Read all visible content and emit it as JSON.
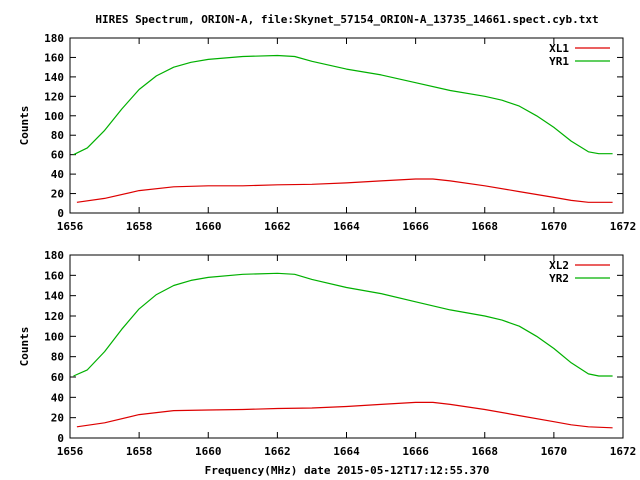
{
  "title": "HIRES Spectrum, ORION-A, file:Skynet_57154_ORION-A_13735_14661.spect.cyb.txt",
  "xlabel": "Frequency(MHz) date 2015-05-12T17:12:55.370",
  "colors": {
    "red": "#dd0000",
    "green": "#00b000",
    "axis": "#000000"
  },
  "chart_data": [
    {
      "type": "line",
      "ylabel": "Counts",
      "xlim": [
        1656,
        1672
      ],
      "ylim": [
        0,
        180
      ],
      "xticks": [
        "1656",
        "1658",
        "1660",
        "1662",
        "1664",
        "1666",
        "1668",
        "1670",
        "1672"
      ],
      "yticks": [
        "0",
        "20",
        "40",
        "60",
        "80",
        "100",
        "120",
        "140",
        "160",
        "180"
      ],
      "legend_position": "top-right",
      "series": [
        {
          "name": "XL1",
          "color": "#dd0000",
          "x": [
            1656.2,
            1657.0,
            1658.0,
            1659.0,
            1660.0,
            1661.0,
            1662.0,
            1663.0,
            1664.0,
            1665.0,
            1666.0,
            1666.5,
            1667.0,
            1668.0,
            1669.0,
            1670.0,
            1670.5,
            1671.0,
            1671.7
          ],
          "y": [
            11,
            15,
            23,
            27,
            28,
            28,
            29,
            29.5,
            31,
            33,
            35,
            35,
            33,
            28,
            22,
            16,
            13,
            11,
            11
          ]
        },
        {
          "name": "YR1",
          "color": "#00b000",
          "x": [
            1656.1,
            1656.5,
            1657.0,
            1657.5,
            1658.0,
            1658.5,
            1659.0,
            1659.5,
            1660.0,
            1661.0,
            1662.0,
            1662.5,
            1663.0,
            1664.0,
            1665.0,
            1666.0,
            1667.0,
            1668.0,
            1668.5,
            1669.0,
            1669.5,
            1670.0,
            1670.5,
            1671.0,
            1671.3,
            1671.7
          ],
          "y": [
            60,
            67,
            85,
            107,
            127,
            141,
            150,
            155,
            158,
            161,
            162,
            161,
            156,
            148,
            142,
            134,
            126,
            120,
            116,
            110,
            100,
            88,
            74,
            63,
            61,
            61
          ]
        }
      ]
    },
    {
      "type": "line",
      "ylabel": "Counts",
      "xlim": [
        1656,
        1672
      ],
      "ylim": [
        0,
        180
      ],
      "xticks": [
        "1656",
        "1658",
        "1660",
        "1662",
        "1664",
        "1666",
        "1668",
        "1670",
        "1672"
      ],
      "yticks": [
        "0",
        "20",
        "40",
        "60",
        "80",
        "100",
        "120",
        "140",
        "160",
        "180"
      ],
      "legend_position": "top-right",
      "series": [
        {
          "name": "XL2",
          "color": "#dd0000",
          "x": [
            1656.2,
            1657.0,
            1658.0,
            1659.0,
            1660.0,
            1661.0,
            1662.0,
            1663.0,
            1664.0,
            1665.0,
            1666.0,
            1666.5,
            1667.0,
            1668.0,
            1669.0,
            1670.0,
            1670.5,
            1671.0,
            1671.7
          ],
          "y": [
            11,
            15,
            23,
            27,
            27.5,
            28,
            29,
            29.5,
            31,
            33,
            35,
            35,
            33,
            28,
            22,
            16,
            13,
            11,
            10
          ]
        },
        {
          "name": "YR2",
          "color": "#00b000",
          "x": [
            1656.1,
            1656.5,
            1657.0,
            1657.5,
            1658.0,
            1658.5,
            1659.0,
            1659.5,
            1660.0,
            1661.0,
            1662.0,
            1662.5,
            1663.0,
            1664.0,
            1665.0,
            1666.0,
            1667.0,
            1668.0,
            1668.5,
            1669.0,
            1669.5,
            1670.0,
            1670.5,
            1671.0,
            1671.3,
            1671.7
          ],
          "y": [
            61,
            67,
            85,
            107,
            127,
            141,
            150,
            155,
            158,
            161,
            162,
            161,
            156,
            148,
            142,
            134,
            126,
            120,
            116,
            110,
            100,
            88,
            74,
            63,
            61,
            61
          ]
        }
      ]
    }
  ]
}
